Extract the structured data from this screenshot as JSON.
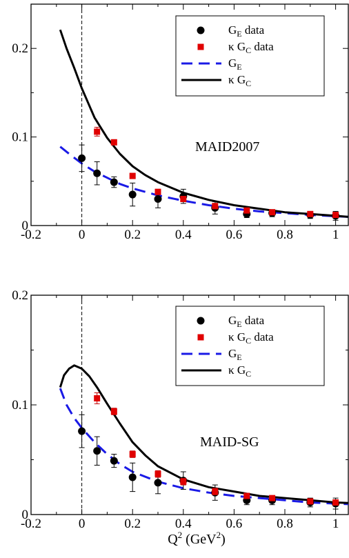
{
  "chart_data": [
    {
      "type": "line",
      "annotation": "MAID2007",
      "xlim": [
        -0.2,
        1.05
      ],
      "ylim": [
        0,
        0.25
      ],
      "x_ticks": [
        "-0.2",
        "0",
        "0.2",
        "0.4",
        "0.6",
        "0.8",
        "1"
      ],
      "y_ticks": [
        "0",
        "0.1",
        "0.2"
      ],
      "grid": false,
      "legend_position": "top-right",
      "reference_line_x": 0,
      "legend": [
        {
          "key": "ge_data",
          "label_main": "G",
          "label_sub": "E",
          "label_tail": " data",
          "kind": "circle",
          "color": "#000000"
        },
        {
          "key": "gc_data",
          "label_main": "κ G",
          "label_sub": "C",
          "label_tail": " data",
          "kind": "square",
          "color": "#e00000"
        },
        {
          "key": "ge_curve",
          "label_main": "G",
          "label_sub": "E",
          "label_tail": "",
          "kind": "dash",
          "color": "#1a1ae6"
        },
        {
          "key": "gc_curve",
          "label_main": "κ G",
          "label_sub": "C",
          "label_tail": "",
          "kind": "solid",
          "color": "#000000"
        }
      ],
      "series": [
        {
          "name": "G_E data",
          "kind": "circle",
          "color": "#000000",
          "points": [
            [
              0,
              0.076,
              0.015
            ],
            [
              0.06,
              0.059,
              0.013
            ],
            [
              0.127,
              0.049,
              0.006
            ],
            [
              0.2,
              0.035,
              0.013
            ],
            [
              0.3,
              0.03,
              0.01
            ],
            [
              0.4,
              0.033,
              0.008
            ],
            [
              0.525,
              0.02,
              0.007
            ],
            [
              0.65,
              0.013,
              0.004
            ],
            [
              0.75,
              0.014,
              0.004
            ],
            [
              0.9,
              0.012,
              0.004
            ],
            [
              1.0,
              0.011,
              0.005
            ]
          ]
        },
        {
          "name": "κ G_C data",
          "kind": "square",
          "color": "#e00000",
          "points": [
            [
              0.06,
              0.106,
              0.005
            ],
            [
              0.127,
              0.094,
              0.003
            ],
            [
              0.2,
              0.056,
              0.003
            ],
            [
              0.3,
              0.038,
              0.003
            ],
            [
              0.4,
              0.03,
              0.003
            ],
            [
              0.525,
              0.022,
              0.003
            ],
            [
              0.65,
              0.017,
              0.002
            ],
            [
              0.75,
              0.015,
              0.002
            ],
            [
              0.9,
              0.013,
              0.002
            ],
            [
              1.0,
              0.012,
              0.002
            ]
          ]
        },
        {
          "name": "G_E",
          "kind": "dash",
          "color": "#1a1ae6",
          "points": [
            [
              -0.085,
              0.089
            ],
            [
              -0.05,
              0.081
            ],
            [
              0,
              0.07
            ],
            [
              0.05,
              0.061
            ],
            [
              0.1,
              0.054
            ],
            [
              0.15,
              0.047
            ],
            [
              0.2,
              0.042
            ],
            [
              0.3,
              0.034
            ],
            [
              0.4,
              0.028
            ],
            [
              0.5,
              0.023
            ],
            [
              0.6,
              0.019
            ],
            [
              0.7,
              0.016
            ],
            [
              0.8,
              0.014
            ],
            [
              0.9,
              0.012
            ],
            [
              1.0,
              0.0105
            ],
            [
              1.05,
              0.0098
            ]
          ]
        },
        {
          "name": "κ G_C",
          "kind": "solid",
          "color": "#000000",
          "points": [
            [
              -0.085,
              0.221
            ],
            [
              -0.06,
              0.2
            ],
            [
              -0.03,
              0.178
            ],
            [
              0,
              0.155
            ],
            [
              0.05,
              0.122
            ],
            [
              0.1,
              0.099
            ],
            [
              0.15,
              0.081
            ],
            [
              0.2,
              0.067
            ],
            [
              0.25,
              0.057
            ],
            [
              0.3,
              0.049
            ],
            [
              0.4,
              0.037
            ],
            [
              0.5,
              0.029
            ],
            [
              0.6,
              0.023
            ],
            [
              0.7,
              0.019
            ],
            [
              0.8,
              0.015
            ],
            [
              0.9,
              0.013
            ],
            [
              1.0,
              0.011
            ],
            [
              1.05,
              0.0098
            ]
          ]
        }
      ]
    },
    {
      "type": "line",
      "annotation": "MAID-SG",
      "xlim": [
        -0.2,
        1.05
      ],
      "ylim": [
        0,
        0.2
      ],
      "x_ticks": [
        "-0.2",
        "0",
        "0.2",
        "0.4",
        "0.6",
        "0.8",
        "1"
      ],
      "y_ticks": [
        "0",
        "0.1",
        "0.2"
      ],
      "grid": false,
      "legend_position": "top-right",
      "reference_line_x": 0,
      "x_axis_label": "Q",
      "x_axis_label_sup": "2",
      "x_axis_label_unit": " (GeV",
      "x_axis_label_unit_sup": "2",
      "x_axis_label_close": ")",
      "legend": [
        {
          "key": "ge_data",
          "label_main": "G",
          "label_sub": "E",
          "label_tail": " data",
          "kind": "circle",
          "color": "#000000"
        },
        {
          "key": "gc_data",
          "label_main": "κ G",
          "label_sub": "C",
          "label_tail": " data",
          "kind": "square",
          "color": "#e00000"
        },
        {
          "key": "ge_curve",
          "label_main": "G",
          "label_sub": "E",
          "label_tail": "",
          "kind": "dash",
          "color": "#1a1ae6"
        },
        {
          "key": "gc_curve",
          "label_main": "κ G",
          "label_sub": "C",
          "label_tail": "",
          "kind": "solid",
          "color": "#000000"
        }
      ],
      "series": [
        {
          "name": "G_E data",
          "kind": "circle",
          "color": "#000000",
          "points": [
            [
              0,
              0.076,
              0.015
            ],
            [
              0.06,
              0.058,
              0.013
            ],
            [
              0.127,
              0.049,
              0.006
            ],
            [
              0.2,
              0.034,
              0.013
            ],
            [
              0.3,
              0.029,
              0.01
            ],
            [
              0.4,
              0.031,
              0.008
            ],
            [
              0.525,
              0.02,
              0.007
            ],
            [
              0.65,
              0.013,
              0.004
            ],
            [
              0.75,
              0.013,
              0.004
            ],
            [
              0.9,
              0.011,
              0.004
            ],
            [
              1.0,
              0.01,
              0.005
            ]
          ]
        },
        {
          "name": "κ G_C data",
          "kind": "square",
          "color": "#e00000",
          "points": [
            [
              0.06,
              0.106,
              0.005
            ],
            [
              0.127,
              0.094,
              0.003
            ],
            [
              0.2,
              0.055,
              0.003
            ],
            [
              0.3,
              0.037,
              0.003
            ],
            [
              0.4,
              0.03,
              0.003
            ],
            [
              0.525,
              0.021,
              0.003
            ],
            [
              0.65,
              0.017,
              0.002
            ],
            [
              0.75,
              0.015,
              0.002
            ],
            [
              0.9,
              0.012,
              0.002
            ],
            [
              1.0,
              0.011,
              0.002
            ]
          ]
        },
        {
          "name": "G_E",
          "kind": "dash",
          "color": "#1a1ae6",
          "points": [
            [
              -0.085,
              0.115
            ],
            [
              -0.06,
              0.1
            ],
            [
              -0.03,
              0.088
            ],
            [
              0,
              0.079
            ],
            [
              0.05,
              0.066
            ],
            [
              0.1,
              0.055
            ],
            [
              0.15,
              0.046
            ],
            [
              0.2,
              0.039
            ],
            [
              0.3,
              0.03
            ],
            [
              0.4,
              0.024
            ],
            [
              0.5,
              0.02
            ],
            [
              0.6,
              0.017
            ],
            [
              0.7,
              0.015
            ],
            [
              0.8,
              0.013
            ],
            [
              0.9,
              0.011
            ],
            [
              1.0,
              0.01
            ],
            [
              1.05,
              0.0095
            ]
          ]
        },
        {
          "name": "κ G_C",
          "kind": "solid",
          "color": "#000000",
          "points": [
            [
              -0.085,
              0.116
            ],
            [
              -0.07,
              0.127
            ],
            [
              -0.05,
              0.133
            ],
            [
              -0.03,
              0.136
            ],
            [
              0,
              0.133
            ],
            [
              0.03,
              0.126
            ],
            [
              0.06,
              0.116
            ],
            [
              0.1,
              0.101
            ],
            [
              0.15,
              0.083
            ],
            [
              0.2,
              0.066
            ],
            [
              0.25,
              0.054
            ],
            [
              0.3,
              0.044
            ],
            [
              0.4,
              0.032
            ],
            [
              0.5,
              0.025
            ],
            [
              0.6,
              0.021
            ],
            [
              0.7,
              0.017
            ],
            [
              0.8,
              0.015
            ],
            [
              0.9,
              0.013
            ],
            [
              1.0,
              0.011
            ],
            [
              1.05,
              0.0105
            ]
          ]
        }
      ]
    }
  ]
}
